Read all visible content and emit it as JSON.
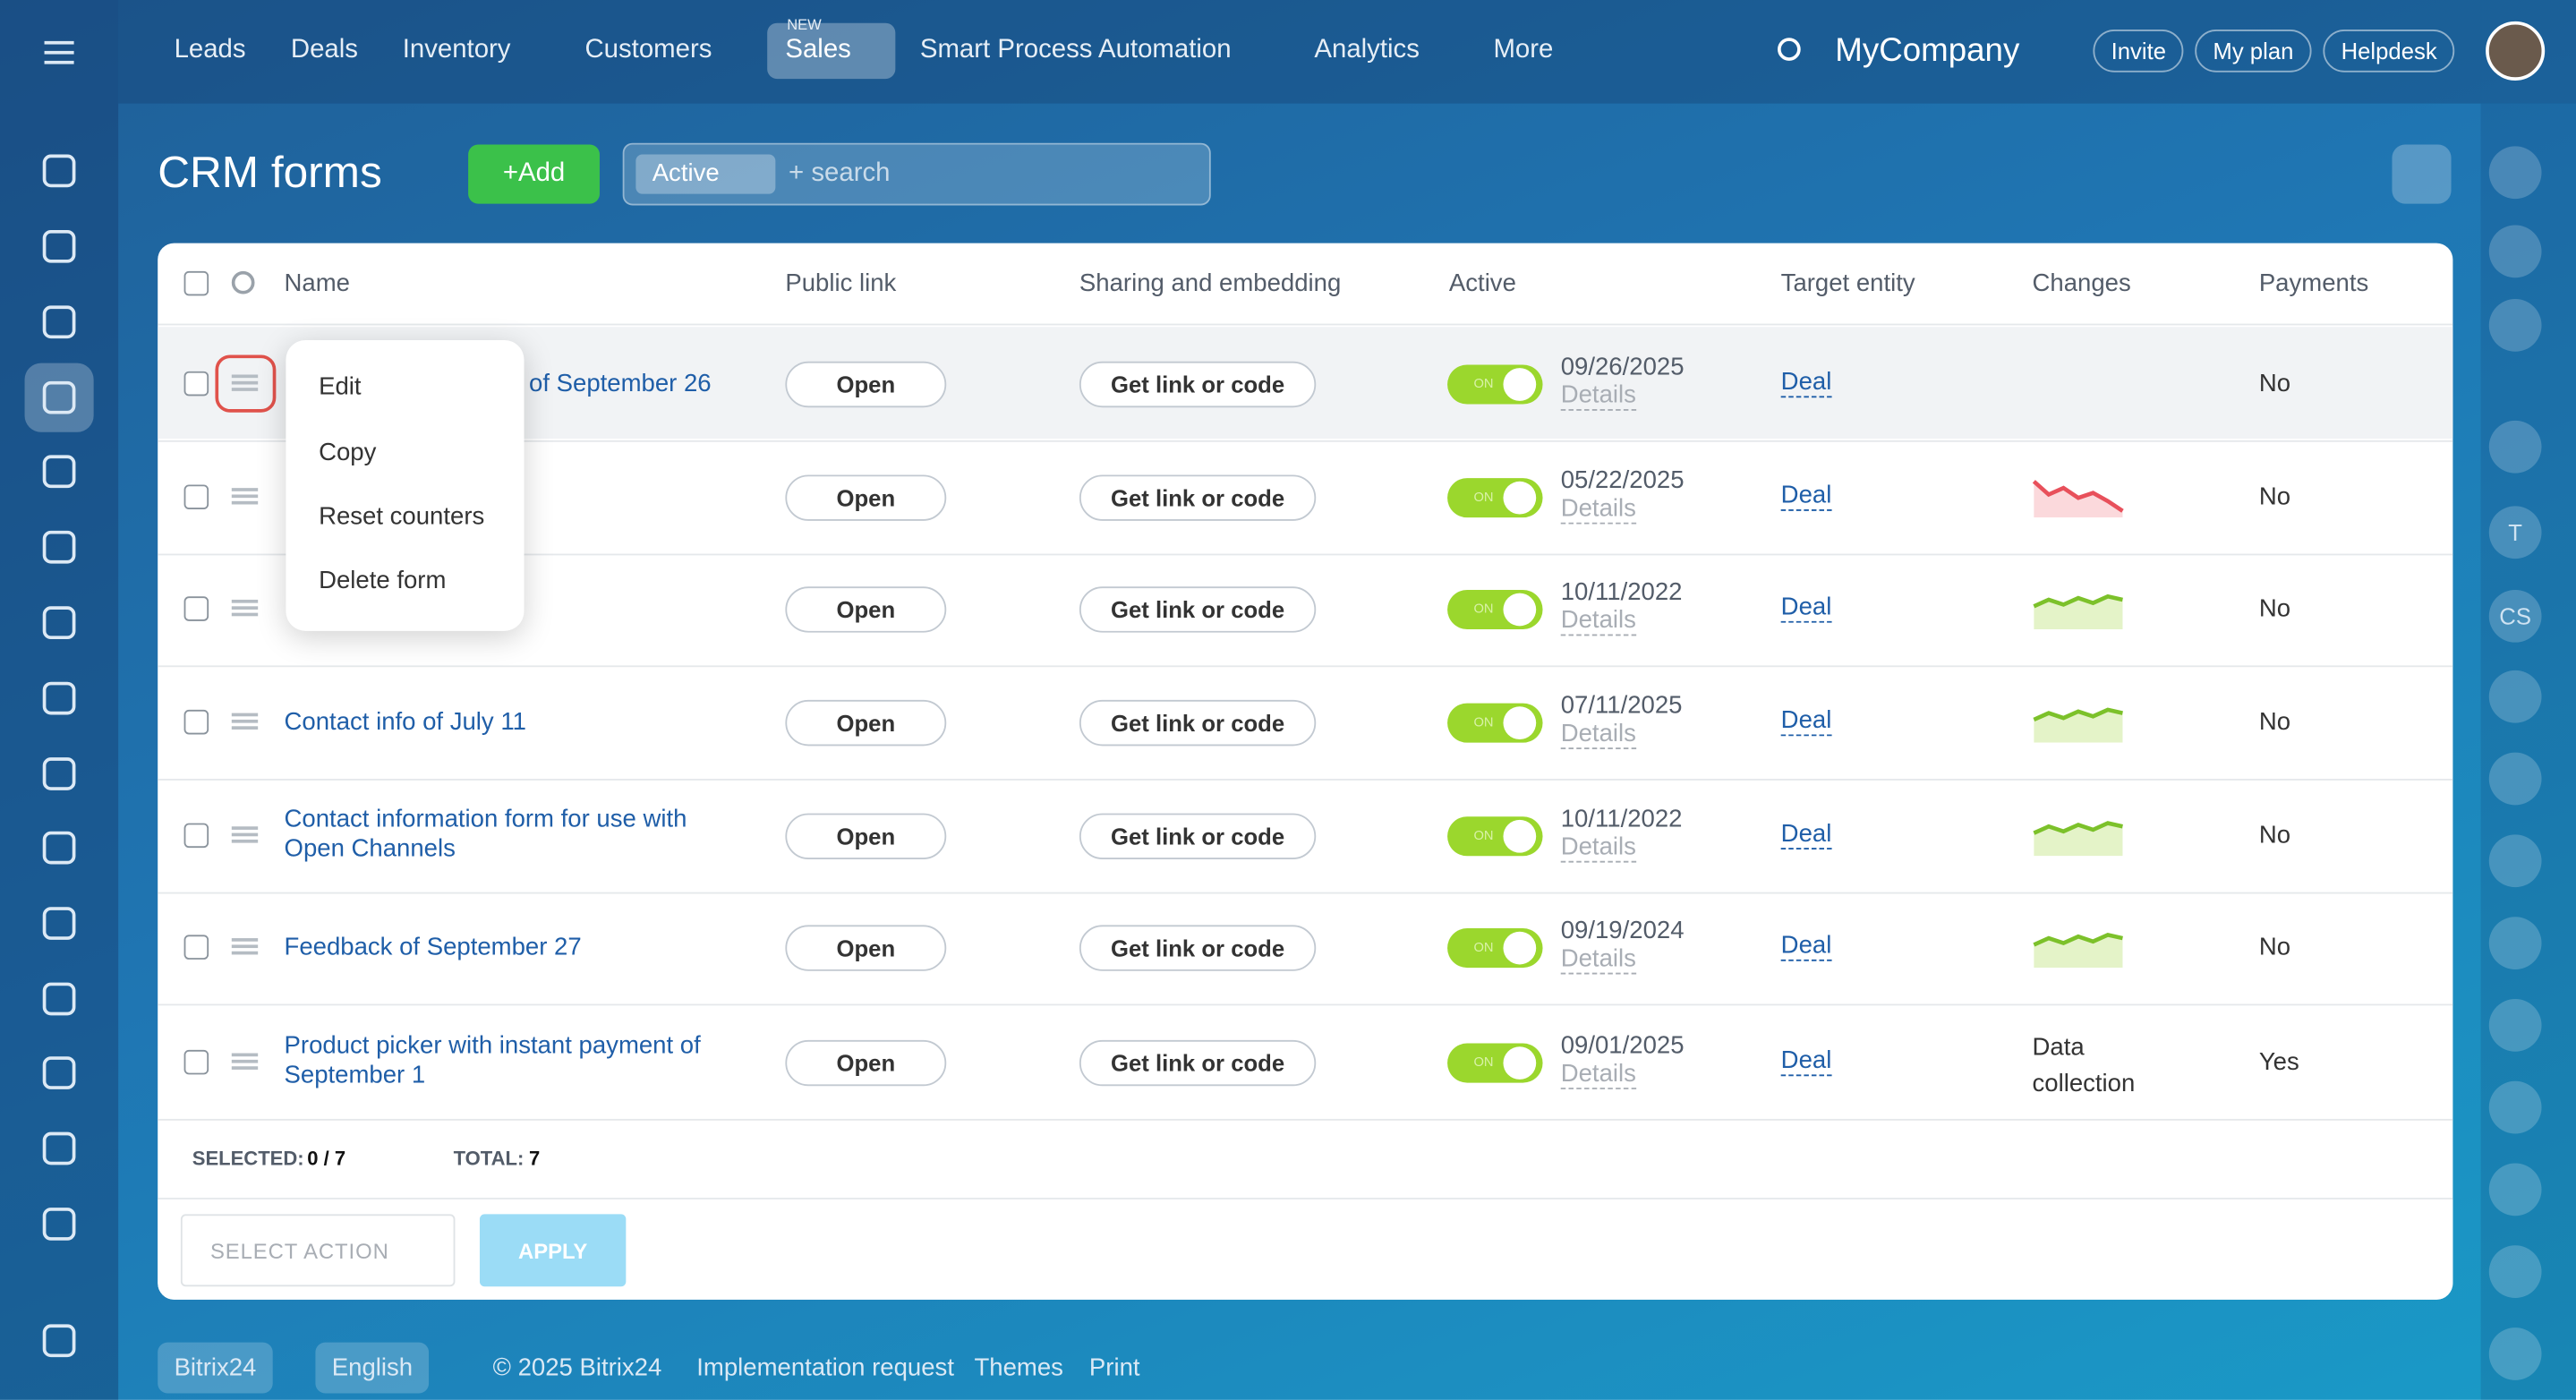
{
  "topnav": {
    "items": [
      "Leads",
      "Deals",
      "Inventory",
      "Customers",
      "Sales",
      "Smart Process Automation",
      "Analytics",
      "More"
    ],
    "new_badge": "NEW",
    "company": "MyCompany",
    "buttons": [
      "Invite",
      "My plan",
      "Helpdesk"
    ]
  },
  "header": {
    "title": "CRM forms",
    "add": "Add",
    "filter": "Active",
    "search": "+ search"
  },
  "table": {
    "columns": [
      "Name",
      "Public link",
      "Sharing and embedding",
      "Active",
      "Target entity",
      "Changes",
      "Payments"
    ],
    "rows": [
      {
        "name": "of September 26",
        "link": "Open",
        "share": "Get link or code",
        "toggle": "ON",
        "date": "09/26/2025",
        "details": "Details",
        "target": "Deal",
        "payments": "No"
      },
      {
        "link": "Open",
        "share": "Get link or code",
        "toggle": "ON",
        "date": "05/22/2025",
        "details": "Details",
        "target": "Deal",
        "trend": "falling",
        "payments": "No"
      },
      {
        "link": "Open",
        "share": "Get link or code",
        "toggle": "ON",
        "date": "10/11/2022",
        "details": "Details",
        "target": "Deal",
        "trend": "rising",
        "payments": "No"
      },
      {
        "name": "Contact info of July 11",
        "link": "Open",
        "share": "Get link or code",
        "toggle": "ON",
        "date": "07/11/2025",
        "details": "Details",
        "target": "Deal",
        "trend": "rising",
        "payments": "No"
      },
      {
        "name": "Contact information form for use with Open Channels",
        "link": "Open",
        "share": "Get link or code",
        "toggle": "ON",
        "date": "10/11/2022",
        "details": "Details",
        "target": "Deal",
        "trend": "rising",
        "payments": "No"
      },
      {
        "name": "Feedback of September 27",
        "link": "Open",
        "share": "Get link or code",
        "toggle": "ON",
        "date": "09/19/2024",
        "details": "Details",
        "target": "Deal",
        "trend": "rising",
        "payments": "No"
      },
      {
        "name": "Product picker with instant payment of September 1",
        "link": "Open",
        "share": "Get link or code",
        "toggle": "ON",
        "date": "09/01/2025",
        "details": "Details",
        "target": "Deal",
        "changes": "Data collection",
        "payments": "Yes"
      }
    ],
    "selected_label": "SELECTED:",
    "selected": "0 / 7",
    "total_label": "TOTAL:",
    "total": "7",
    "select_action": "SELECT ACTION",
    "apply": "APPLY"
  },
  "menu": [
    "Edit",
    "Copy",
    "Reset counters",
    "Delete form"
  ],
  "footer": [
    "Bitrix24",
    "English",
    "© 2025 Bitrix24",
    "Implementation request",
    "Themes",
    "Print"
  ],
  "right_sidebar": [
    "T",
    "CS"
  ]
}
